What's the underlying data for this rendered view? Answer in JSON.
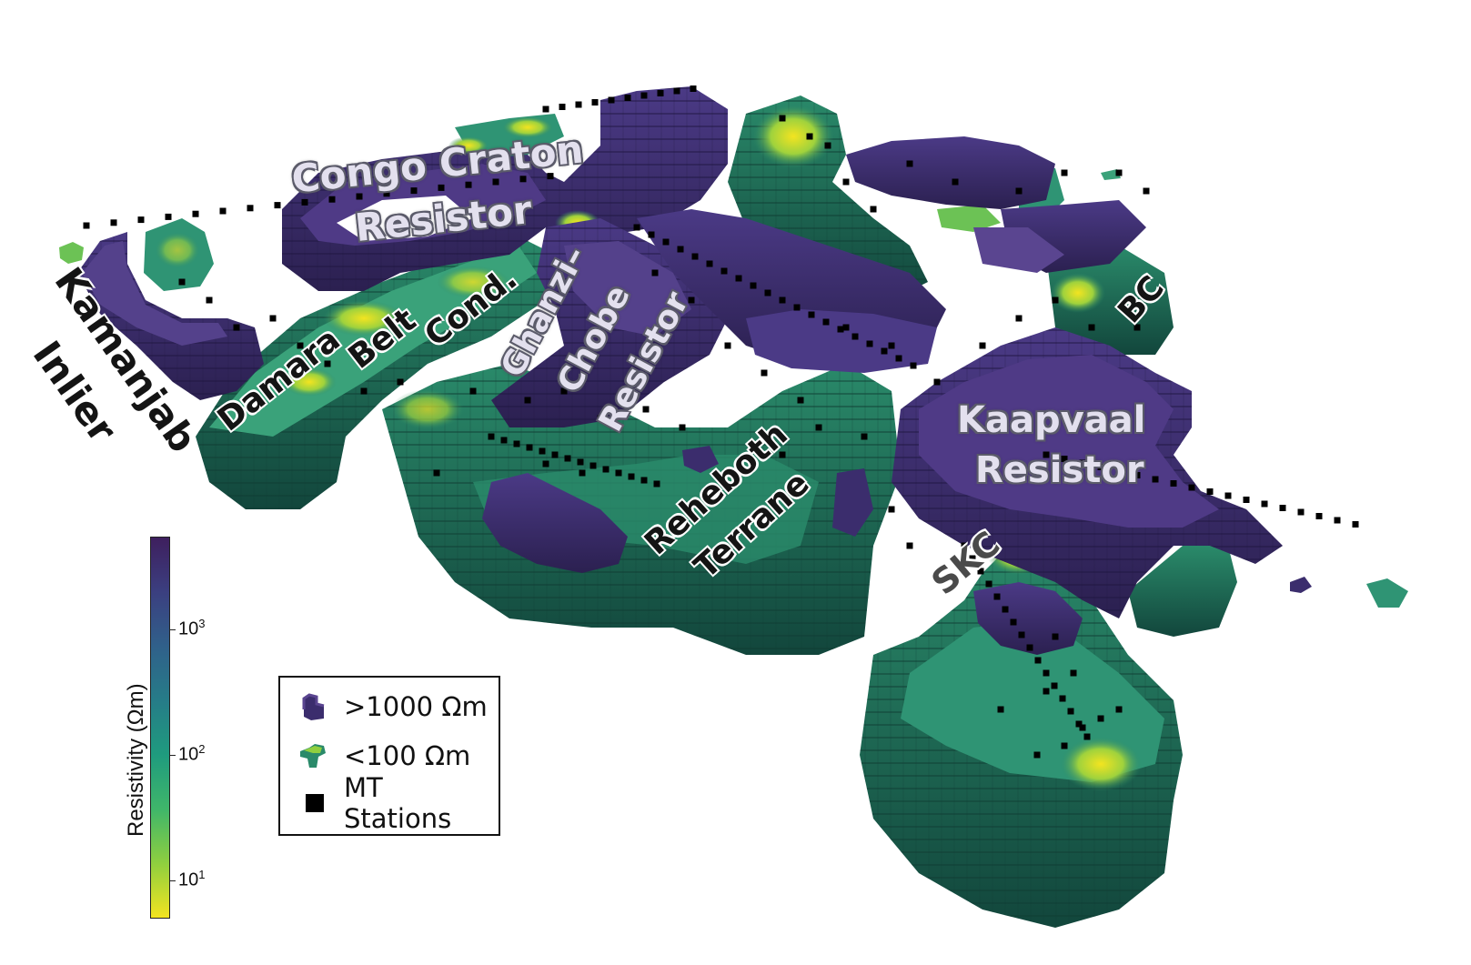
{
  "colors": {
    "resistor": "#3f2a6e",
    "resistor_light": "#5a4590",
    "conductor_dark": "#1f5a4e",
    "conductor": "#2a8a6a",
    "conductor_mid": "#3aa27a",
    "conductor_bright": "#b8d93a",
    "conductor_peak": "#f2e52a",
    "stations": "#000000"
  },
  "labels": {
    "congo_craton": "Congo Craton",
    "congo_resistor": "Resistor",
    "kamanjab": "Kamanjab",
    "inlier": "Inlier",
    "damara": "Damara",
    "belt": "Belt",
    "cond": "Cond.",
    "ghanzi": "Ghanzi–",
    "chobe": "Chobe",
    "ghanzi_resistor": "Resistor",
    "rehoboth": "Reheboth",
    "terrane": "Terrane",
    "kaapvaal": "Kaapvaal",
    "kaapvaal_resistor": "Resistor",
    "bc": "BC",
    "skc": "SKC"
  },
  "colorbar": {
    "title": "Resistivity (Ωm)",
    "scale": "log",
    "ticks": [
      {
        "base": "10",
        "exp": "3",
        "value": 1000
      },
      {
        "base": "10",
        "exp": "2",
        "value": 100
      },
      {
        "base": "10",
        "exp": "1",
        "value": 10
      }
    ],
    "gradient": [
      "#3e1f5e",
      "#3b3f80",
      "#30608a",
      "#267c88",
      "#1f9b7e",
      "#3fb66a",
      "#8fcf3f",
      "#f3e420"
    ]
  },
  "legend": {
    "resistor_label": ">1000 Ωm",
    "conductor_label": "<100 Ωm",
    "stations_label": "MT Stations"
  }
}
